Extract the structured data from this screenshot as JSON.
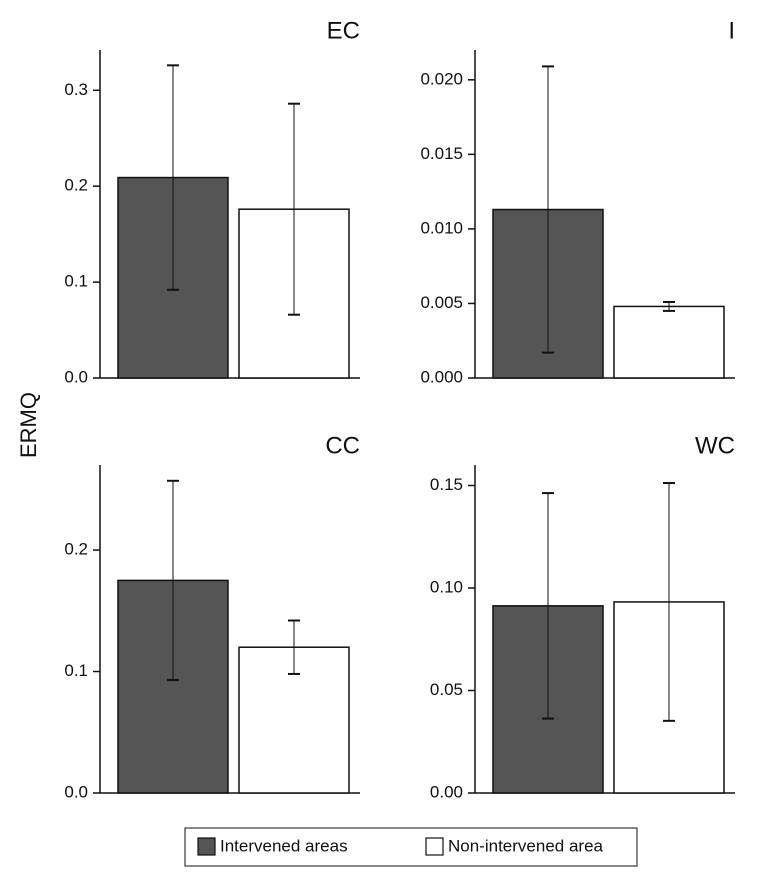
{
  "ylabel": "ERMQ",
  "legend": {
    "labels": [
      "Intervened areas",
      "Non-intervened area"
    ],
    "colors": [
      "#555555",
      "#ffffff"
    ]
  },
  "chart_data": [
    {
      "type": "bar",
      "title": "EC",
      "values": [
        0.209,
        0.176
      ],
      "errors": [
        0.117,
        0.11
      ],
      "ylim": [
        0,
        0.342
      ],
      "yticks": [
        {
          "value": 0,
          "label": "0.0"
        },
        0.1,
        0.2,
        0.3
      ]
    },
    {
      "type": "bar",
      "title": "I",
      "values": [
        0.0113,
        0.0048
      ],
      "errors": [
        0.0096,
        0.0003
      ],
      "ylim": [
        0,
        0.022
      ],
      "yticks": [
        {
          "value": 0,
          "label": "0.000"
        },
        {
          "value": 0.005,
          "label": "0.005"
        },
        {
          "value": 0.01,
          "label": "0.010"
        },
        {
          "value": 0.015,
          "label": "0.015"
        },
        {
          "value": 0.02,
          "label": "0.020"
        }
      ]
    },
    {
      "type": "bar",
      "title": "CC",
      "values": [
        0.175,
        0.12
      ],
      "errors": [
        0.082,
        0.022
      ],
      "ylim": [
        0,
        0.27
      ],
      "yticks": [
        {
          "value": 0,
          "label": "0.0"
        },
        0.1,
        0.2
      ]
    },
    {
      "type": "bar",
      "title": "WC",
      "values": [
        0.0913,
        0.0932
      ],
      "errors": [
        0.055,
        0.058
      ],
      "ylim": [
        0,
        0.16
      ],
      "yticks": [
        {
          "value": 0,
          "label": "0.00"
        },
        {
          "value": 0.05,
          "label": "0.05"
        },
        {
          "value": 0.1,
          "label": "0.10"
        },
        {
          "value": 0.15,
          "label": "0.15"
        }
      ]
    }
  ]
}
